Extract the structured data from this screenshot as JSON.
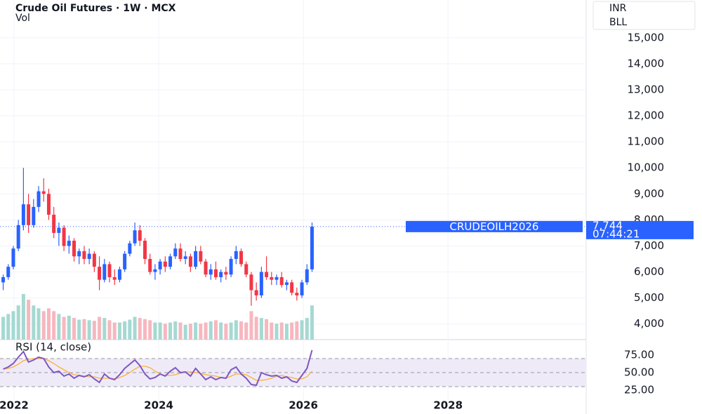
{
  "chart_data": {
    "type": "candlestick",
    "title": "Crude Oil Futures · 1W · MCX",
    "volume_label": "Vol",
    "rsi_label": "RSI (14, close)",
    "currency": "INR",
    "unit": "BLL",
    "price_tag": {
      "symbol": "CRUDEOILH2026",
      "label": "7,744",
      "countdown": "07:44:21"
    },
    "up_color": "#2962ff",
    "down_color": "#f23645",
    "volume_up_color": "#a5d9d2",
    "volume_down_color": "#f7b7bf",
    "rsi_color": "#7e57c2",
    "rsi_ma_color": "#f9b233",
    "grid": true,
    "x": [
      2021.85,
      2021.92,
      2021.99,
      2022.06,
      2022.13,
      2022.2,
      2022.27,
      2022.34,
      2022.41,
      2022.48,
      2022.55,
      2022.62,
      2022.69,
      2022.76,
      2022.83,
      2022.9,
      2022.97,
      2023.04,
      2023.11,
      2023.18,
      2023.25,
      2023.32,
      2023.39,
      2023.46,
      2023.53,
      2023.6,
      2023.67,
      2023.74,
      2023.81,
      2023.88,
      2023.95,
      2024.02,
      2024.09,
      2024.16,
      2024.23,
      2024.3,
      2024.37,
      2024.44,
      2024.51,
      2024.58,
      2024.65,
      2024.72,
      2024.79,
      2024.86,
      2024.93,
      2025,
      2025.07,
      2025.14,
      2025.21,
      2025.28,
      2025.35,
      2025.42,
      2025.49,
      2025.56,
      2025.63,
      2025.7,
      2025.77,
      2025.84,
      2025.91,
      2025.98,
      2026.05,
      2026.12
    ],
    "open": [
      5600,
      5800,
      6200,
      6900,
      7800,
      8600,
      7800,
      8500,
      9100,
      9000,
      8200,
      7500,
      7700,
      7000,
      7200,
      6600,
      6800,
      6500,
      6700,
      6200,
      5700,
      6300,
      5800,
      5700,
      6100,
      6700,
      7100,
      7600,
      7200,
      6500,
      6000,
      6100,
      6400,
      6200,
      6600,
      6900,
      6500,
      6600,
      6200,
      6800,
      6400,
      5900,
      6100,
      5800,
      6000,
      5900,
      6500,
      6800,
      6300,
      5900,
      5300,
      5100,
      6000,
      5800,
      5700,
      5800,
      5500,
      5600,
      5200,
      5100,
      5600,
      6100
    ],
    "high": [
      5900,
      6300,
      7000,
      8000,
      10000,
      9000,
      8800,
      9300,
      9600,
      9200,
      8500,
      7900,
      7800,
      7400,
      7300,
      6900,
      7000,
      6900,
      6800,
      6600,
      6500,
      6400,
      6100,
      6200,
      6800,
      7200,
      7900,
      7800,
      7300,
      6700,
      6300,
      6500,
      6600,
      6700,
      7100,
      7100,
      6800,
      6700,
      7000,
      7000,
      6500,
      6300,
      6400,
      6100,
      6200,
      6600,
      7000,
      6900,
      6400,
      6000,
      5600,
      6200,
      6600,
      6000,
      5900,
      6000,
      5700,
      5700,
      5400,
      5700,
      6300,
      7900
    ],
    "low": [
      5300,
      5700,
      6100,
      6800,
      7600,
      7500,
      7700,
      8300,
      8700,
      8000,
      7300,
      7000,
      6800,
      6700,
      6400,
      6300,
      6300,
      6300,
      6000,
      5300,
      5600,
      5600,
      5500,
      5600,
      6000,
      6600,
      7000,
      7000,
      6300,
      5900,
      5700,
      5900,
      6000,
      6100,
      6500,
      6400,
      6300,
      6000,
      6100,
      6300,
      5800,
      5700,
      5700,
      5600,
      5700,
      5800,
      6300,
      6200,
      5800,
      4700,
      4900,
      5000,
      5700,
      5500,
      5500,
      5400,
      5300,
      5100,
      4900,
      5000,
      5500,
      6000
    ],
    "close": [
      5800,
      6200,
      6900,
      7800,
      8600,
      7800,
      8500,
      9100,
      9000,
      8200,
      7500,
      7700,
      7000,
      7200,
      6600,
      6800,
      6500,
      6700,
      6200,
      5700,
      6300,
      5800,
      5700,
      6100,
      6700,
      7100,
      7600,
      7200,
      6500,
      6000,
      6100,
      6400,
      6200,
      6600,
      6900,
      6500,
      6600,
      6200,
      6800,
      6400,
      5900,
      6100,
      5800,
      6000,
      5900,
      6500,
      6800,
      6300,
      5900,
      5300,
      5100,
      6000,
      5800,
      5700,
      5800,
      5500,
      5600,
      5200,
      5100,
      5600,
      6100,
      7744
    ],
    "volume": [
      40,
      45,
      50,
      60,
      80,
      70,
      60,
      55,
      50,
      55,
      50,
      45,
      40,
      42,
      38,
      35,
      36,
      34,
      33,
      40,
      38,
      34,
      30,
      30,
      32,
      35,
      40,
      38,
      36,
      34,
      30,
      30,
      28,
      30,
      32,
      30,
      26,
      28,
      30,
      28,
      30,
      32,
      34,
      30,
      28,
      30,
      34,
      32,
      30,
      50,
      40,
      38,
      36,
      30,
      28,
      30,
      28,
      30,
      32,
      34,
      38,
      60
    ],
    "rsi": [
      55,
      58,
      63,
      72,
      80,
      65,
      68,
      72,
      70,
      58,
      50,
      52,
      45,
      48,
      42,
      46,
      44,
      47,
      41,
      36,
      48,
      42,
      40,
      47,
      56,
      62,
      68,
      60,
      48,
      41,
      43,
      48,
      45,
      52,
      57,
      50,
      51,
      45,
      56,
      48,
      40,
      44,
      40,
      43,
      42,
      54,
      58,
      48,
      42,
      33,
      32,
      50,
      47,
      45,
      46,
      42,
      44,
      38,
      36,
      46,
      56,
      82
    ],
    "rsi_ma": [
      55,
      56,
      58,
      62,
      67,
      69,
      70,
      70,
      70,
      67,
      63,
      58,
      54,
      50,
      47,
      46,
      45,
      44,
      44,
      42,
      42,
      42,
      41,
      43,
      46,
      50,
      55,
      59,
      59,
      57,
      52,
      48,
      46,
      46,
      47,
      49,
      51,
      51,
      50,
      49,
      47,
      46,
      45,
      43,
      42,
      45,
      48,
      48,
      47,
      43,
      39,
      39,
      40,
      42,
      45,
      46,
      44,
      43,
      41,
      41,
      44,
      52
    ],
    "rsi_bands": [
      30,
      50,
      70
    ],
    "xlim": [
      2021.806,
      2029.91
    ],
    "xticks": [
      2022,
      2024,
      2026,
      2028
    ],
    "ylim": [
      3400,
      16450
    ],
    "yticks": [
      {
        "value": 4000,
        "label": "4,000"
      },
      {
        "value": 5000,
        "label": "5,000"
      },
      {
        "value": 6000,
        "label": "6,000"
      },
      {
        "value": 7000,
        "label": "7,000"
      },
      {
        "value": 8000,
        "label": "8,000"
      },
      {
        "value": 9000,
        "label": "9,000"
      },
      {
        "value": 10000,
        "label": "10,000"
      },
      {
        "value": 11000,
        "label": "11,000"
      },
      {
        "value": 12000,
        "label": "12,000"
      },
      {
        "value": 13000,
        "label": "13,000"
      },
      {
        "value": 14000,
        "label": "14,000"
      },
      {
        "value": 15000,
        "label": "15,000"
      }
    ],
    "rsi_ylim": [
      16,
      91
    ],
    "rsi_yticks": [
      {
        "value": 75,
        "label": "75.00"
      },
      {
        "value": 50,
        "label": "50.00"
      },
      {
        "value": 25,
        "label": "25.00"
      }
    ]
  }
}
